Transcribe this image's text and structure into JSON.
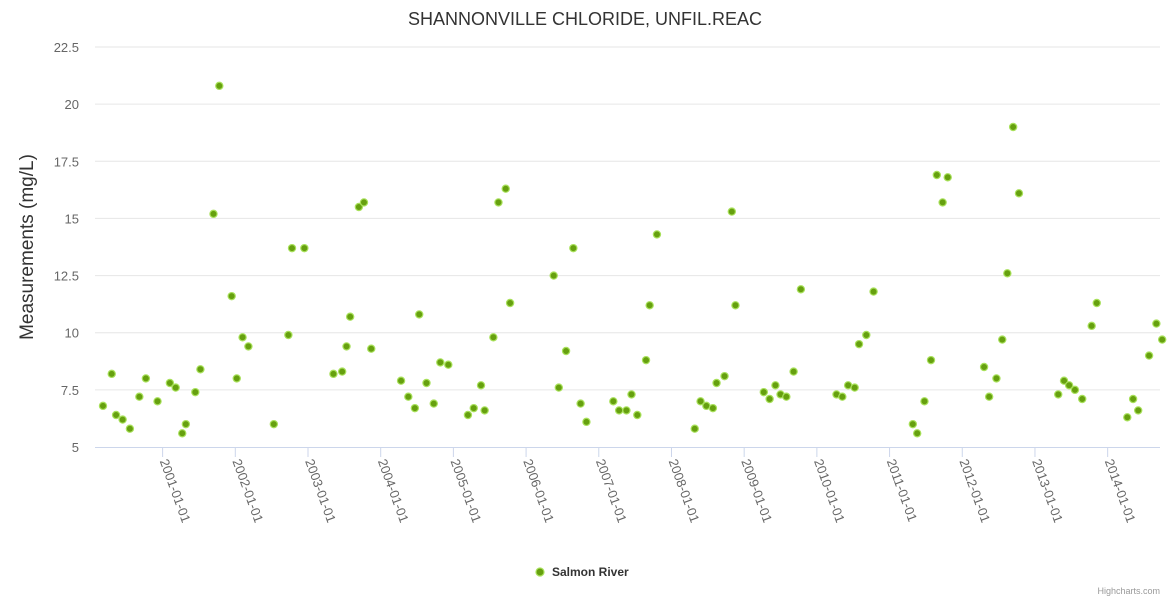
{
  "chart_data": {
    "type": "scatter",
    "title": "SHANNONVILLE CHLORIDE, UNFIL.REAC",
    "ylabel": "Measurements (mg/L)",
    "xlabel": "",
    "ylim": [
      5,
      22.5
    ],
    "yticks": [
      "5",
      "7.5",
      "10",
      "12.5",
      "15",
      "17.5",
      "20",
      "22.5"
    ],
    "xlim": [
      2000.07,
      2014.72
    ],
    "xticks": [
      {
        "label": "2001-01-01",
        "year": 2001
      },
      {
        "label": "2002-01-01",
        "year": 2002
      },
      {
        "label": "2003-01-01",
        "year": 2003
      },
      {
        "label": "2004-01-01",
        "year": 2004
      },
      {
        "label": "2005-01-01",
        "year": 2005
      },
      {
        "label": "2006-01-01",
        "year": 2006
      },
      {
        "label": "2007-01-01",
        "year": 2007
      },
      {
        "label": "2008-01-01",
        "year": 2008
      },
      {
        "label": "2009-01-01",
        "year": 2009
      },
      {
        "label": "2010-01-01",
        "year": 2010
      },
      {
        "label": "2011-01-01",
        "year": 2011
      },
      {
        "label": "2012-01-01",
        "year": 2012
      },
      {
        "label": "2013-01-01",
        "year": 2013
      },
      {
        "label": "2014-01-01",
        "year": 2014
      }
    ],
    "legend": {
      "position": "bottom-center"
    },
    "series": [
      {
        "name": "Salmon River",
        "color": "#66a00f",
        "points": [
          [
            2000.18,
            6.8
          ],
          [
            2000.3,
            8.2
          ],
          [
            2000.36,
            6.4
          ],
          [
            2000.45,
            6.2
          ],
          [
            2000.55,
            5.8
          ],
          [
            2000.68,
            7.2
          ],
          [
            2000.77,
            8.0
          ],
          [
            2000.93,
            7.0
          ],
          [
            2001.1,
            7.8
          ],
          [
            2001.18,
            7.6
          ],
          [
            2001.27,
            5.6
          ],
          [
            2001.32,
            6.0
          ],
          [
            2001.45,
            7.4
          ],
          [
            2001.52,
            8.4
          ],
          [
            2001.7,
            15.2
          ],
          [
            2001.78,
            20.8
          ],
          [
            2001.95,
            11.6
          ],
          [
            2002.02,
            8.0
          ],
          [
            2002.1,
            9.8
          ],
          [
            2002.18,
            9.4
          ],
          [
            2002.53,
            6.0
          ],
          [
            2002.73,
            9.9
          ],
          [
            2002.78,
            13.7
          ],
          [
            2002.95,
            13.7
          ],
          [
            2003.35,
            8.2
          ],
          [
            2003.47,
            8.3
          ],
          [
            2003.53,
            9.4
          ],
          [
            2003.58,
            10.7
          ],
          [
            2003.7,
            15.5
          ],
          [
            2003.77,
            15.7
          ],
          [
            2003.87,
            9.3
          ],
          [
            2004.28,
            7.9
          ],
          [
            2004.38,
            7.2
          ],
          [
            2004.47,
            6.7
          ],
          [
            2004.53,
            10.8
          ],
          [
            2004.63,
            7.8
          ],
          [
            2004.73,
            6.9
          ],
          [
            2004.82,
            8.7
          ],
          [
            2004.93,
            8.6
          ],
          [
            2005.2,
            6.4
          ],
          [
            2005.28,
            6.7
          ],
          [
            2005.38,
            7.7
          ],
          [
            2005.43,
            6.6
          ],
          [
            2005.55,
            9.8
          ],
          [
            2005.62,
            15.7
          ],
          [
            2005.72,
            16.3
          ],
          [
            2005.78,
            11.3
          ],
          [
            2006.38,
            12.5
          ],
          [
            2006.45,
            7.6
          ],
          [
            2006.55,
            9.2
          ],
          [
            2006.65,
            13.7
          ],
          [
            2006.75,
            6.9
          ],
          [
            2006.83,
            6.1
          ],
          [
            2007.2,
            7.0
          ],
          [
            2007.28,
            6.6
          ],
          [
            2007.38,
            6.6
          ],
          [
            2007.45,
            7.3
          ],
          [
            2007.53,
            6.4
          ],
          [
            2007.65,
            8.8
          ],
          [
            2007.7,
            11.2
          ],
          [
            2007.8,
            14.3
          ],
          [
            2008.32,
            5.8
          ],
          [
            2008.4,
            7.0
          ],
          [
            2008.48,
            6.8
          ],
          [
            2008.57,
            6.7
          ],
          [
            2008.62,
            7.8
          ],
          [
            2008.73,
            8.1
          ],
          [
            2008.83,
            15.3
          ],
          [
            2008.88,
            11.2
          ],
          [
            2009.27,
            7.4
          ],
          [
            2009.35,
            7.1
          ],
          [
            2009.43,
            7.7
          ],
          [
            2009.5,
            7.3
          ],
          [
            2009.58,
            7.2
          ],
          [
            2009.68,
            8.3
          ],
          [
            2009.78,
            11.9
          ],
          [
            2010.27,
            7.3
          ],
          [
            2010.35,
            7.2
          ],
          [
            2010.43,
            7.7
          ],
          [
            2010.52,
            7.6
          ],
          [
            2010.58,
            9.5
          ],
          [
            2010.68,
            9.9
          ],
          [
            2010.78,
            11.8
          ],
          [
            2011.32,
            6.0
          ],
          [
            2011.38,
            5.6
          ],
          [
            2011.48,
            7.0
          ],
          [
            2011.57,
            8.8
          ],
          [
            2011.65,
            16.9
          ],
          [
            2011.73,
            15.7
          ],
          [
            2011.8,
            16.8
          ],
          [
            2012.3,
            8.5
          ],
          [
            2012.37,
            7.2
          ],
          [
            2012.47,
            8.0
          ],
          [
            2012.55,
            9.7
          ],
          [
            2012.62,
            12.6
          ],
          [
            2012.7,
            19.0
          ],
          [
            2012.78,
            16.1
          ],
          [
            2013.32,
            7.3
          ],
          [
            2013.4,
            7.9
          ],
          [
            2013.47,
            7.7
          ],
          [
            2013.55,
            7.5
          ],
          [
            2013.65,
            7.1
          ],
          [
            2013.78,
            10.3
          ],
          [
            2013.85,
            11.3
          ],
          [
            2014.27,
            6.3
          ],
          [
            2014.35,
            7.1
          ],
          [
            2014.42,
            6.6
          ],
          [
            2014.57,
            9.0
          ],
          [
            2014.67,
            10.4
          ],
          [
            2014.75,
            9.7
          ]
        ]
      }
    ],
    "credits": "Highcharts.com"
  }
}
